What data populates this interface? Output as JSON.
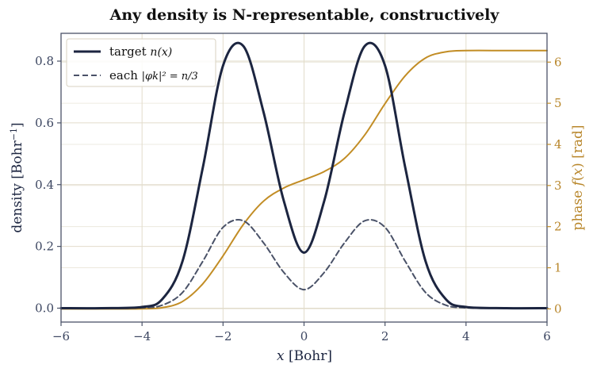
{
  "chart_data": {
    "type": "line",
    "title": "Any density is N-representable, constructively",
    "xlabel": "x  [Bohr]",
    "ylabel": "density  [Bohr⁻¹]",
    "y2label": "phase f(x)  [rad]",
    "xlim": [
      -6,
      6
    ],
    "ylim": [
      -0.045,
      0.89
    ],
    "y2lim": [
      -0.32,
      6.7
    ],
    "xticks": [
      "−6",
      "−4",
      "−2",
      "0",
      "2",
      "4",
      "6"
    ],
    "xtick_values": [
      -6,
      -4,
      -2,
      0,
      2,
      4,
      6
    ],
    "yticks": [
      "0.0",
      "0.2",
      "0.4",
      "0.6",
      "0.8"
    ],
    "ytick_values": [
      0.0,
      0.2,
      0.4,
      0.6,
      0.8
    ],
    "y2ticks": [
      "0",
      "1",
      "2",
      "3",
      "4",
      "5",
      "6"
    ],
    "y2tick_values": [
      0,
      1,
      2,
      3,
      4,
      5,
      6
    ],
    "grid": true,
    "legend_position": "top-left",
    "x": [
      -6,
      -5,
      -4,
      -3.5,
      -3,
      -2.5,
      -2,
      -1.5,
      -1,
      -0.5,
      0,
      0.5,
      1,
      1.5,
      2,
      2.5,
      3,
      3.5,
      4,
      5,
      6
    ],
    "series": [
      {
        "name": "target n(x)",
        "axis": "left",
        "style": "solid",
        "color": "#1c2540",
        "values": [
          0.0,
          0.0,
          0.0037,
          0.0291,
          0.1524,
          0.4547,
          0.7854,
          0.849,
          0.6349,
          0.3477,
          0.1799,
          0.3477,
          0.6349,
          0.849,
          0.7854,
          0.4547,
          0.1524,
          0.0291,
          0.0037,
          0.0,
          0.0
        ]
      },
      {
        "name": "each |φk|² = n/3",
        "axis": "left",
        "style": "dashed",
        "color": "#4a5268",
        "values": [
          0.0,
          0.0,
          0.0012,
          0.0097,
          0.0508,
          0.1516,
          0.2618,
          0.283,
          0.2116,
          0.1159,
          0.06,
          0.1159,
          0.2116,
          0.283,
          0.2618,
          0.1516,
          0.0508,
          0.0097,
          0.0012,
          0.0,
          0.0
        ]
      },
      {
        "name": "phase f(x)",
        "axis": "right",
        "style": "solid",
        "color": "#c28d25",
        "values": [
          0.0,
          0.0,
          0.0036,
          0.03,
          0.18,
          0.61,
          1.29,
          2.05,
          2.62,
          2.94,
          3.14,
          3.34,
          3.66,
          4.23,
          4.99,
          5.67,
          6.1,
          6.25,
          6.28,
          6.28,
          6.28
        ]
      }
    ]
  },
  "legend": {
    "entries": [
      {
        "prefix": "target ",
        "math": "n(x)"
      },
      {
        "prefix": "each ",
        "math": "|φk|² = n/3"
      }
    ]
  },
  "colors": {
    "target": "#1c2540",
    "each": "#4a5268",
    "phase": "#c28d25",
    "grid": "#e2dccb",
    "frame": "#4a5268"
  }
}
